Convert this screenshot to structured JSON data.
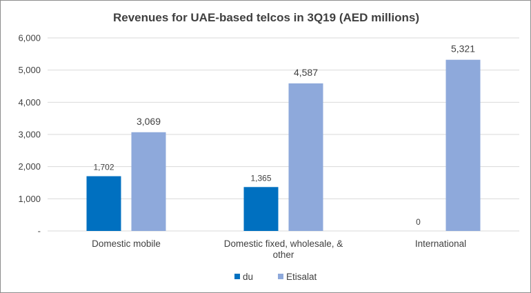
{
  "chart_data": {
    "type": "bar",
    "title": "Revenues for UAE-based telcos in 3Q19 (AED millions)",
    "categories": [
      "Domestic mobile",
      "Domestic fixed, wholesale, & other",
      "International"
    ],
    "category_lines": [
      [
        "Domestic mobile"
      ],
      [
        "Domestic fixed, wholesale, &",
        "other"
      ],
      [
        "International"
      ]
    ],
    "series": [
      {
        "name": "du",
        "values": [
          1702,
          1365,
          0
        ],
        "labels": [
          "1,702",
          "1,365",
          "0"
        ],
        "color": "#0070c0"
      },
      {
        "name": "Etisalat",
        "values": [
          3069,
          4587,
          5321
        ],
        "labels": [
          "3,069",
          "4,587",
          "5,321"
        ],
        "color": "#8ea9db"
      }
    ],
    "ylim": [
      0,
      6000
    ],
    "yticks": [
      0,
      1000,
      2000,
      3000,
      4000,
      5000,
      6000
    ],
    "ytick_labels": [
      "-",
      "1,000",
      "2,000",
      "3,000",
      "4,000",
      "5,000",
      "6,000"
    ],
    "grid": true,
    "legend_position": "bottom"
  }
}
